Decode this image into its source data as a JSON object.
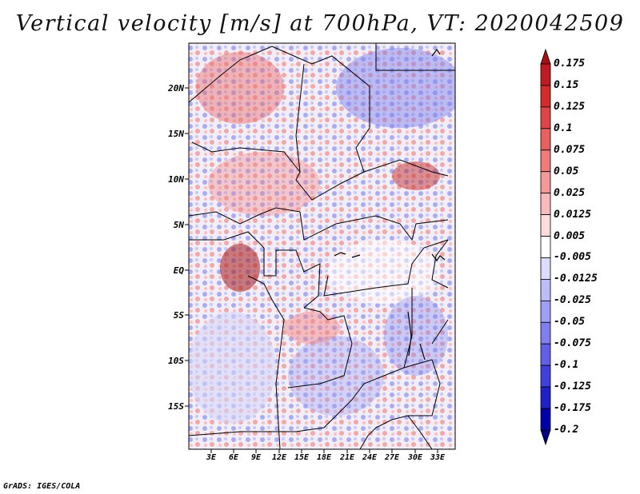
{
  "title": "Vertical velocity [m/s] at 700hPa, VT: 2020042509",
  "credit": "GrADS: IGES/COLA",
  "lat_ticks": [
    "20N",
    "15N",
    "10N",
    "5N",
    "EQ",
    "5S",
    "10S",
    "15S"
  ],
  "lon_ticks": [
    "3E",
    "6E",
    "9E",
    "12E",
    "15E",
    "18E",
    "21E",
    "24E",
    "27E",
    "30E",
    "33E"
  ],
  "colorbar": {
    "labels": [
      "0.175",
      "0.15",
      "0.125",
      "0.1",
      "0.075",
      "0.05",
      "0.025",
      "0.0125",
      "0.005",
      "-0.005",
      "-0.0125",
      "-0.025",
      "-0.05",
      "-0.075",
      "-0.1",
      "-0.125",
      "-0.175",
      "-0.2"
    ],
    "colors": [
      "#a50f15",
      "#c01a22",
      "#d42b2b",
      "#e04545",
      "#e86060",
      "#ef7b7b",
      "#f49999",
      "#f8baba",
      "#fbdcdc",
      "#ffffff",
      "#dcdcfb",
      "#bdbdf8",
      "#9e9ef3",
      "#7f7fee",
      "#6060e6",
      "#4040dc",
      "#2020c8",
      "#0000a8",
      "#000080"
    ]
  }
}
